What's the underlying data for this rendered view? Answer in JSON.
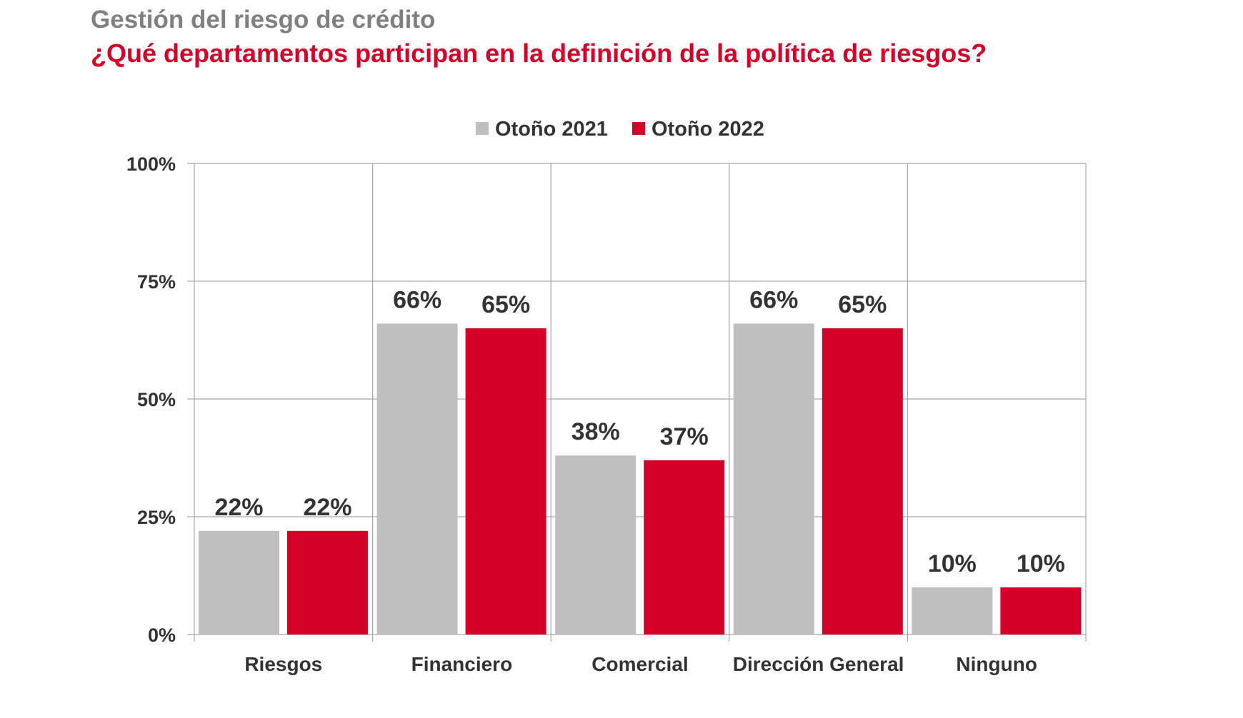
{
  "header": {
    "supertitle": "Gestión del riesgo de crédito",
    "title": "¿Qué departamentos participan en la definición de la política de riesgos?"
  },
  "colors": {
    "series_2021": "#bfbfbf",
    "series_2022": "#d50027",
    "grid": "#a6a6a6",
    "text": "#333333"
  },
  "chart_data": {
    "type": "bar",
    "title": "¿Qué departamentos participan en la definición de la política de riesgos?",
    "xlabel": "",
    "ylabel": "",
    "categories": [
      "Riesgos",
      "Financiero",
      "Comercial",
      "Dirección General",
      "Ninguno"
    ],
    "series": [
      {
        "name": "Otoño 2021",
        "values": [
          22,
          66,
          38,
          66,
          10
        ],
        "labels": [
          "22%",
          "66%",
          "38%",
          "66%",
          "10%"
        ]
      },
      {
        "name": "Otoño 2022",
        "values": [
          22,
          65,
          37,
          65,
          10
        ],
        "labels": [
          "22%",
          "65%",
          "37%",
          "65%",
          "10%"
        ]
      }
    ],
    "ylim": [
      0,
      100
    ],
    "yticks": [
      0,
      25,
      50,
      75,
      100
    ],
    "ytick_labels": [
      "0%",
      "25%",
      "50%",
      "75%",
      "100%"
    ],
    "grid": true,
    "legend_position": "top-center"
  }
}
